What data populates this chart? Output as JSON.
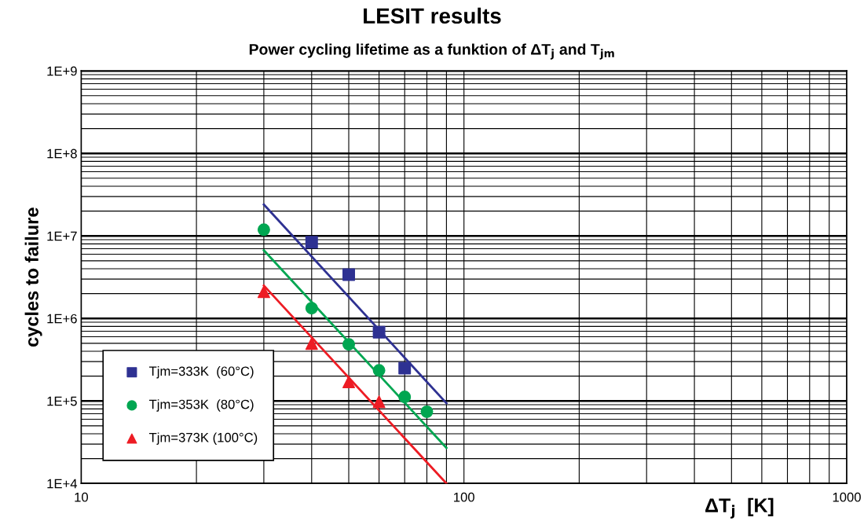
{
  "chart_data": {
    "type": "scatter",
    "title": "LESIT results",
    "subtitle": "Power cycling lifetime as a funktion of ΔT$_{j}$ and T$_{jm}$",
    "xlabel": "ΔT$_{j}$  [K]",
    "ylabel": "cycles to failure",
    "log": "xy",
    "grid": true,
    "legend": "bottom left",
    "xlim": [
      10,
      1000
    ],
    "xticks": [
      10,
      100,
      1000
    ],
    "ylim": [
      10000,
      1000000000
    ],
    "yticks": [
      {
        "value": 10000,
        "label": "1E+4"
      },
      {
        "value": 100000,
        "label": "1E+5"
      },
      {
        "value": 1000000,
        "label": "1E+6"
      },
      {
        "value": 10000000,
        "label": "1E+7"
      },
      {
        "value": 100000000,
        "label": "1E+8"
      },
      {
        "value": 1000000000,
        "label": "1E+9"
      }
    ],
    "series": [
      {
        "name": "Tjm=333K  (60°C)",
        "color": "#2e3192",
        "marker": "square",
        "x": [
          40,
          50,
          60,
          70
        ],
        "values": [
          8400000,
          3400000,
          680000,
          250000
        ]
      },
      {
        "name": "Tjm=353K  (80°C)",
        "color": "#00a651",
        "marker": "circle",
        "x": [
          30,
          40,
          50,
          60,
          70,
          80
        ],
        "values": [
          11900000,
          1330000,
          485000,
          235000,
          112000,
          74000
        ]
      },
      {
        "name": "Tjm=373K (100°C)",
        "color": "#ed1c24",
        "marker": "triangle",
        "x": [
          30,
          40,
          50,
          60
        ],
        "values": [
          2100000,
          495000,
          170000,
          98000
        ]
      },
      {
        "type": "line",
        "color": "#2e3192",
        "x": [
          30,
          90
        ],
        "values": [
          24000000,
          94000
        ]
      },
      {
        "type": "line",
        "color": "#00a651",
        "x": [
          30,
          90
        ],
        "values": [
          6700000,
          27000
        ]
      },
      {
        "type": "line",
        "color": "#ed1c24",
        "x": [
          30,
          90
        ],
        "values": [
          2500000,
          10000
        ]
      }
    ]
  }
}
